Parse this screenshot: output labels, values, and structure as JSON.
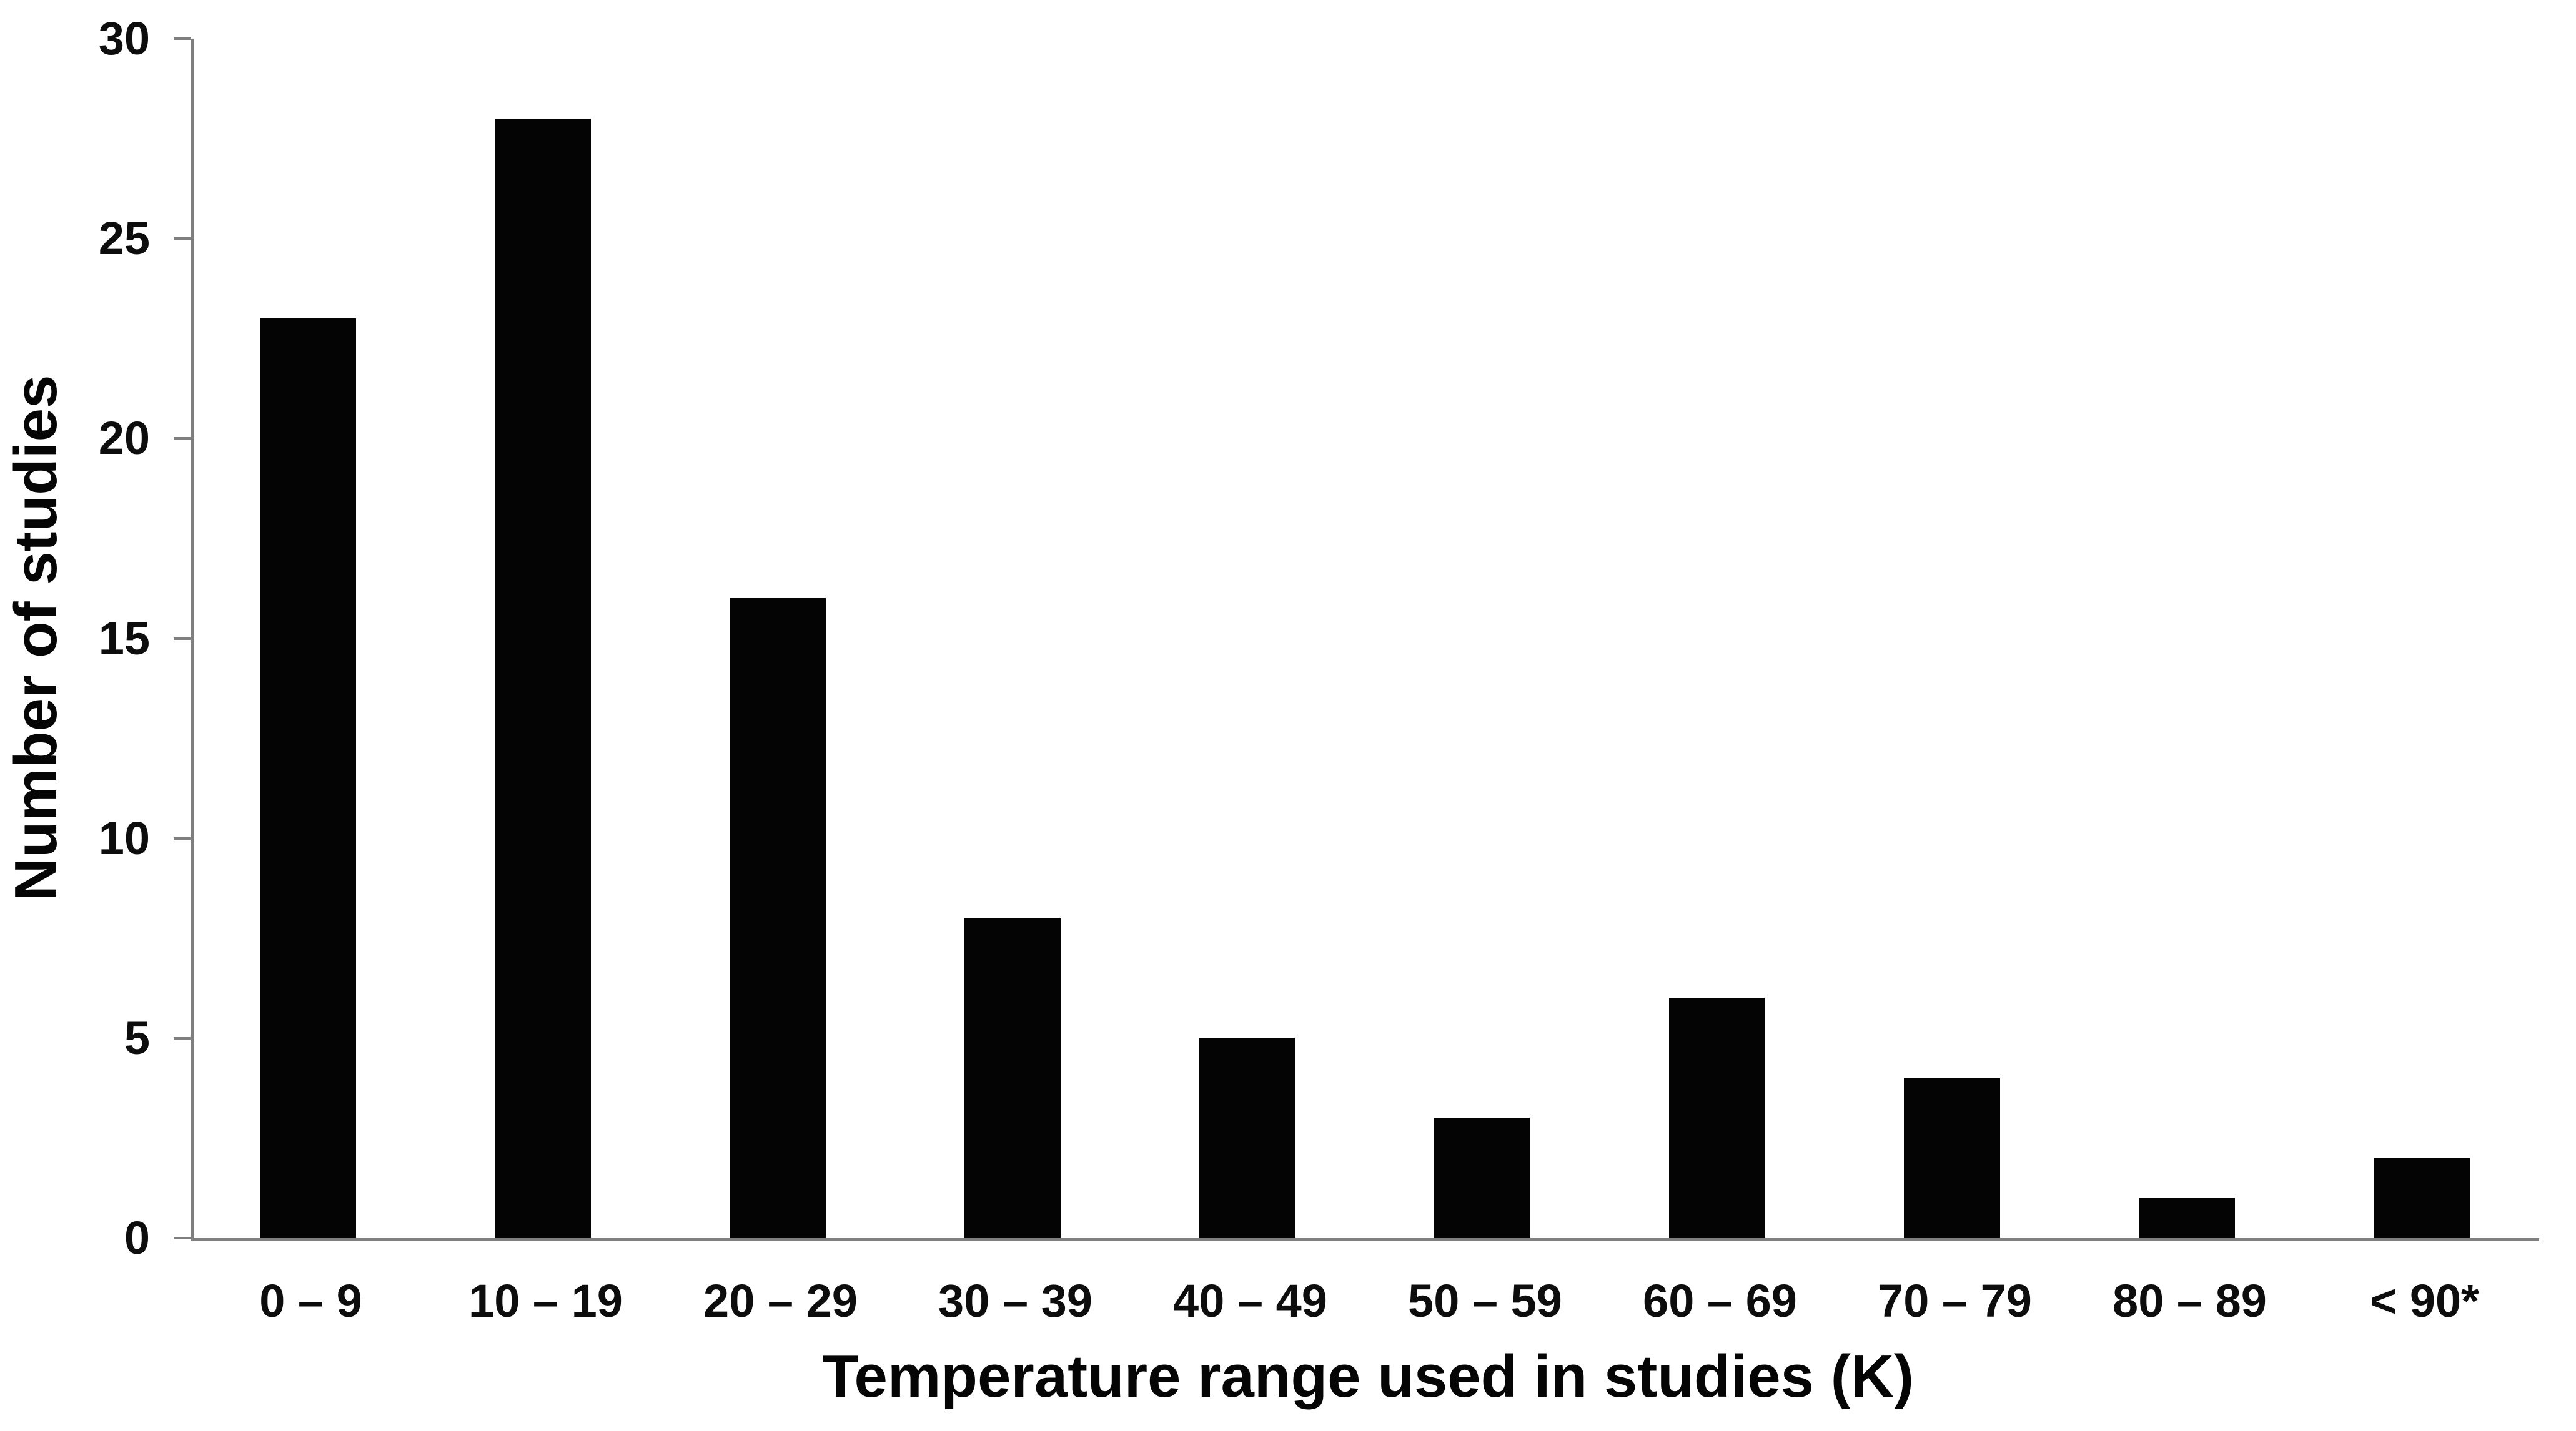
{
  "chart_data": {
    "type": "bar",
    "title": "",
    "categories": [
      "0 – 9",
      "10 – 19",
      "20 – 29",
      "30 – 39",
      "40 – 49",
      "50 – 59",
      "60 – 69",
      "70 – 79",
      "80 – 89",
      "< 90*"
    ],
    "values": [
      23,
      28,
      16,
      8,
      5,
      3,
      6,
      4,
      1,
      2
    ],
    "xlabel": "Temperature range used in studies (K)",
    "ylabel": "Number of studies",
    "ylim": [
      0,
      30
    ],
    "yticks": [
      0,
      5,
      10,
      15,
      20,
      25,
      30
    ],
    "grid": false,
    "legend_position": "none",
    "bar_color": "#040404",
    "axis_color": "#7f7f7f",
    "label_color": "#0d0d0d"
  }
}
